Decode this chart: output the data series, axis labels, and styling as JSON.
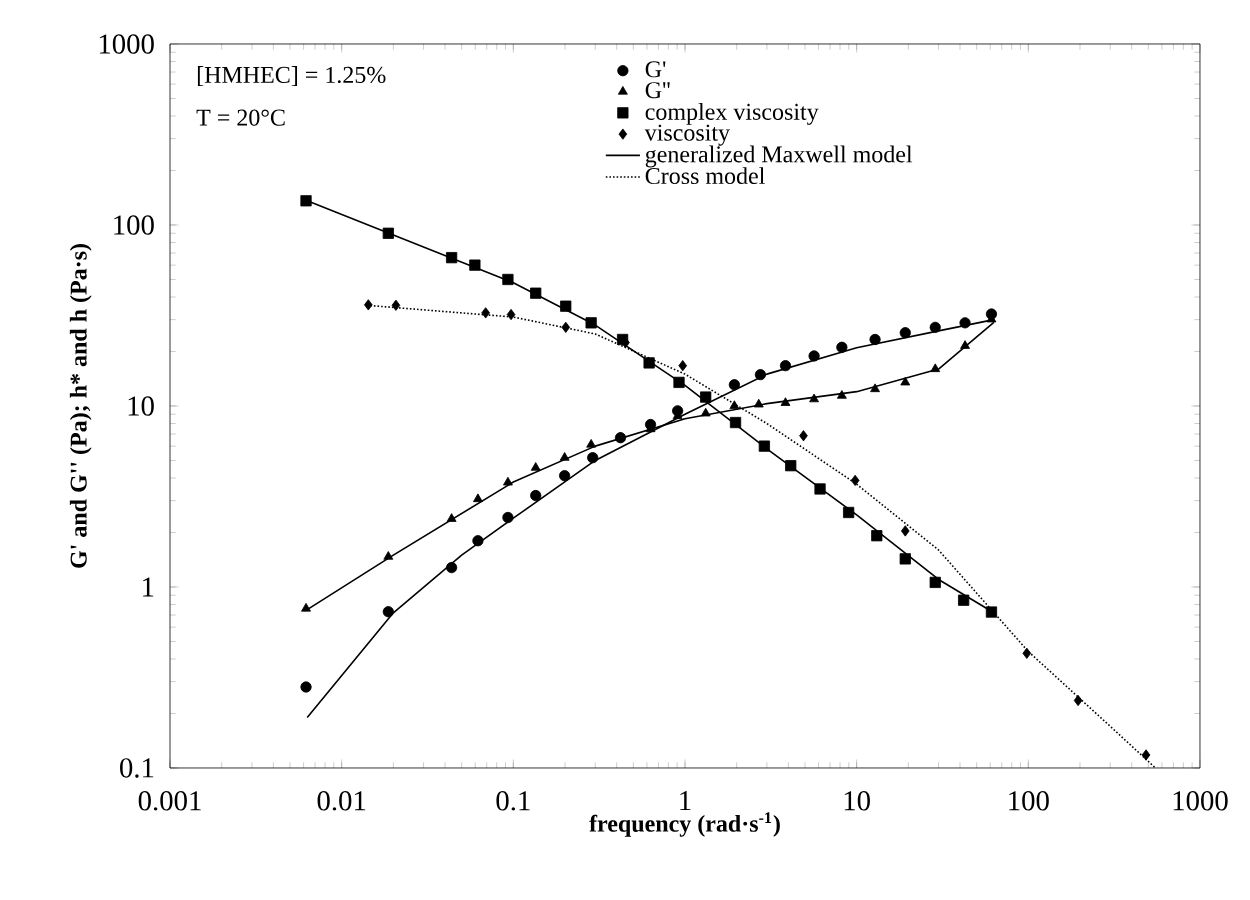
{
  "chart_data": {
    "type": "scatter",
    "xlabel": "frequency (rad·s$^{-1}$)",
    "ylabel": "G' and G'' (Pa); h* and h (Pa·s)",
    "annotations": [
      "[HMHEC] = 1.25%",
      "T = 20°C"
    ],
    "log": "xy",
    "xlim": [
      0.001,
      1000
    ],
    "ylim": [
      0.1,
      1000
    ],
    "xticks": [
      0.001,
      0.01,
      0.1,
      1,
      10,
      100,
      1000
    ],
    "yticks": [
      0.1,
      1,
      10,
      100,
      1000
    ],
    "grid": false,
    "legend": "top",
    "series": [
      {
        "name": "G'",
        "type": "scatter",
        "marker": "circle",
        "color": "#000000",
        "x": [
          0.0062,
          0.0187,
          0.0437,
          0.0622,
          0.093,
          0.135,
          0.199,
          0.29,
          0.421,
          0.63,
          0.906,
          1.32,
          1.94,
          2.75,
          3.85,
          5.65,
          8.2,
          12.8,
          19.2,
          28.7,
          42.8,
          61
        ],
        "values": [
          0.28,
          0.73,
          1.28,
          1.8,
          2.42,
          3.2,
          4.12,
          5.18,
          6.68,
          7.9,
          9.4,
          null,
          13.1,
          14.9,
          16.7,
          18.9,
          21.1,
          23.3,
          25.4,
          27.2,
          28.8,
          32.2
        ]
      },
      {
        "name": "G''",
        "type": "scatter",
        "marker": "triangle",
        "color": "#000000",
        "x": [
          0.0062,
          0.0187,
          0.0437,
          0.0622,
          0.093,
          0.135,
          0.199,
          0.284,
          0.421,
          0.63,
          0.906,
          1.32,
          1.94,
          2.69,
          3.85,
          5.65,
          8.2,
          12.8,
          19.2,
          28.7,
          42.8,
          61
        ],
        "values": [
          0.76,
          1.47,
          2.38,
          3.06,
          3.78,
          4.56,
          5.18,
          6.12,
          6.68,
          7.45,
          8.8,
          9.1,
          10.0,
          10.2,
          10.4,
          10.9,
          11.4,
          12.4,
          13.5,
          16.0,
          21.5,
          30.1
        ]
      },
      {
        "name": "complex viscosity",
        "type": "scatter",
        "marker": "square",
        "color": "#000000",
        "x": [
          0.0062,
          0.0187,
          0.0437,
          0.0597,
          0.093,
          0.135,
          0.202,
          0.284,
          0.433,
          0.618,
          0.923,
          1.32,
          1.97,
          2.9,
          4.13,
          6.12,
          8.98,
          13.1,
          19.2,
          28.7,
          42,
          61
        ],
        "values": [
          136,
          90,
          66,
          60,
          50,
          42,
          35.6,
          28.8,
          23.3,
          17.3,
          13.5,
          11.2,
          8.1,
          6.0,
          4.68,
          3.48,
          2.58,
          1.92,
          1.43,
          1.06,
          0.845,
          0.727
        ]
      },
      {
        "name": "viscosity",
        "type": "scatter",
        "marker": "diamond",
        "color": "#000000",
        "x": [
          0.0143,
          0.0207,
          0.069,
          0.097,
          0.202,
          0.45,
          0.97,
          4.9,
          9.8,
          19.2,
          98,
          195,
          485
        ],
        "values": [
          36.2,
          36,
          32.7,
          32,
          27.2,
          22.4,
          16.7,
          6.85,
          3.88,
          2.04,
          0.43,
          0.236,
          0.118
        ]
      },
      {
        "name": "generalized Maxwell model",
        "type": "line",
        "marker": "none",
        "line_style": "solid",
        "color": "#000000",
        "x": [
          0.0063,
          0.02,
          0.05,
          0.1,
          0.3,
          1,
          3,
          10,
          30,
          63
        ],
        "values": [
          0.19,
          0.72,
          1.5,
          2.4,
          5.0,
          9.0,
          15,
          21,
          26,
          30
        ]
      },
      {
        "type": "line",
        "marker": "none",
        "line_style": "solid",
        "color": "#000000",
        "x": [
          0.0063,
          0.02,
          0.1,
          0.3,
          1,
          3,
          10,
          30,
          63
        ],
        "values": [
          0.75,
          1.5,
          3.8,
          6.0,
          8.5,
          10.3,
          12,
          16,
          29
        ]
      },
      {
        "type": "line",
        "marker": "none",
        "line_style": "solid",
        "color": "#000000",
        "x": [
          0.0063,
          0.02,
          0.1,
          0.3,
          1,
          3,
          10,
          30,
          63
        ],
        "values": [
          136,
          88,
          48,
          28,
          13,
          5.8,
          2.5,
          1.1,
          0.72
        ]
      },
      {
        "name": "Cross model",
        "type": "line",
        "marker": "none",
        "line_style": "dotted",
        "color": "#000000",
        "x": [
          0.014,
          0.1,
          0.3,
          1,
          3,
          10,
          30,
          100,
          300,
          550
        ],
        "values": [
          36,
          31,
          25,
          15,
          8,
          3.7,
          1.6,
          0.44,
          0.17,
          0.1
        ]
      }
    ]
  }
}
